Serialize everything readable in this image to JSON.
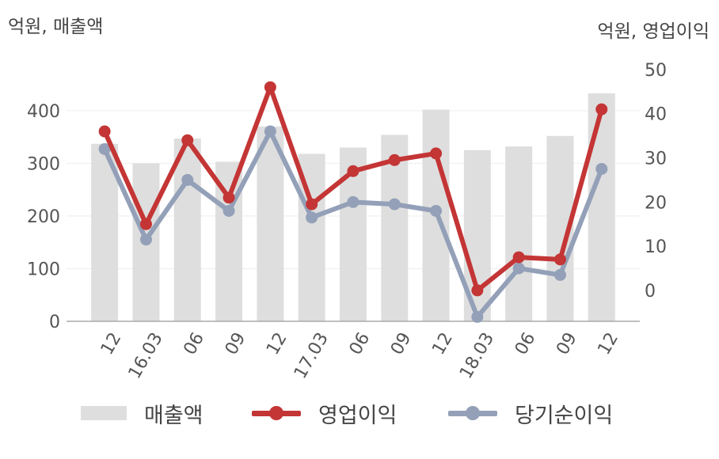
{
  "units": {
    "left": "억원, 매출액",
    "right": "억원, 영업이익"
  },
  "legend": {
    "bar": "매출액",
    "line1": "영업이익",
    "line2": "당기순이익"
  },
  "colors": {
    "bar": "#dedede",
    "op": "#c43535",
    "net": "#93a0b8",
    "axis": "#aaaaaa",
    "grid": "#eeeeee"
  },
  "chart_data": {
    "type": "bar",
    "categories": [
      "12",
      "16.03",
      "06",
      "09",
      "12",
      "17.03",
      "06",
      "09",
      "12",
      "18.03",
      "06",
      "09",
      "12"
    ],
    "y_left": {
      "ticks": [
        0,
        100,
        200,
        300,
        400
      ],
      "range": [
        0,
        520
      ]
    },
    "y_right": {
      "ticks": [
        0,
        10,
        20,
        30,
        40,
        50
      ],
      "range": [
        -7,
        55
      ]
    },
    "series": [
      {
        "name": "매출액",
        "type": "bar",
        "axis": "left",
        "values": [
          337,
          300,
          347,
          303,
          370,
          318,
          330,
          354,
          402,
          325,
          332,
          352,
          433
        ]
      },
      {
        "name": "영업이익",
        "type": "line",
        "axis": "right",
        "values": [
          36,
          15,
          34,
          21,
          46,
          19.5,
          27,
          29.5,
          31,
          0,
          7.5,
          7,
          41
        ]
      },
      {
        "name": "당기순이익",
        "type": "line",
        "axis": "right",
        "values": [
          32,
          11.5,
          25,
          18,
          36,
          16.5,
          20,
          19.5,
          18,
          -6,
          5,
          3.5,
          27.5
        ]
      }
    ]
  }
}
